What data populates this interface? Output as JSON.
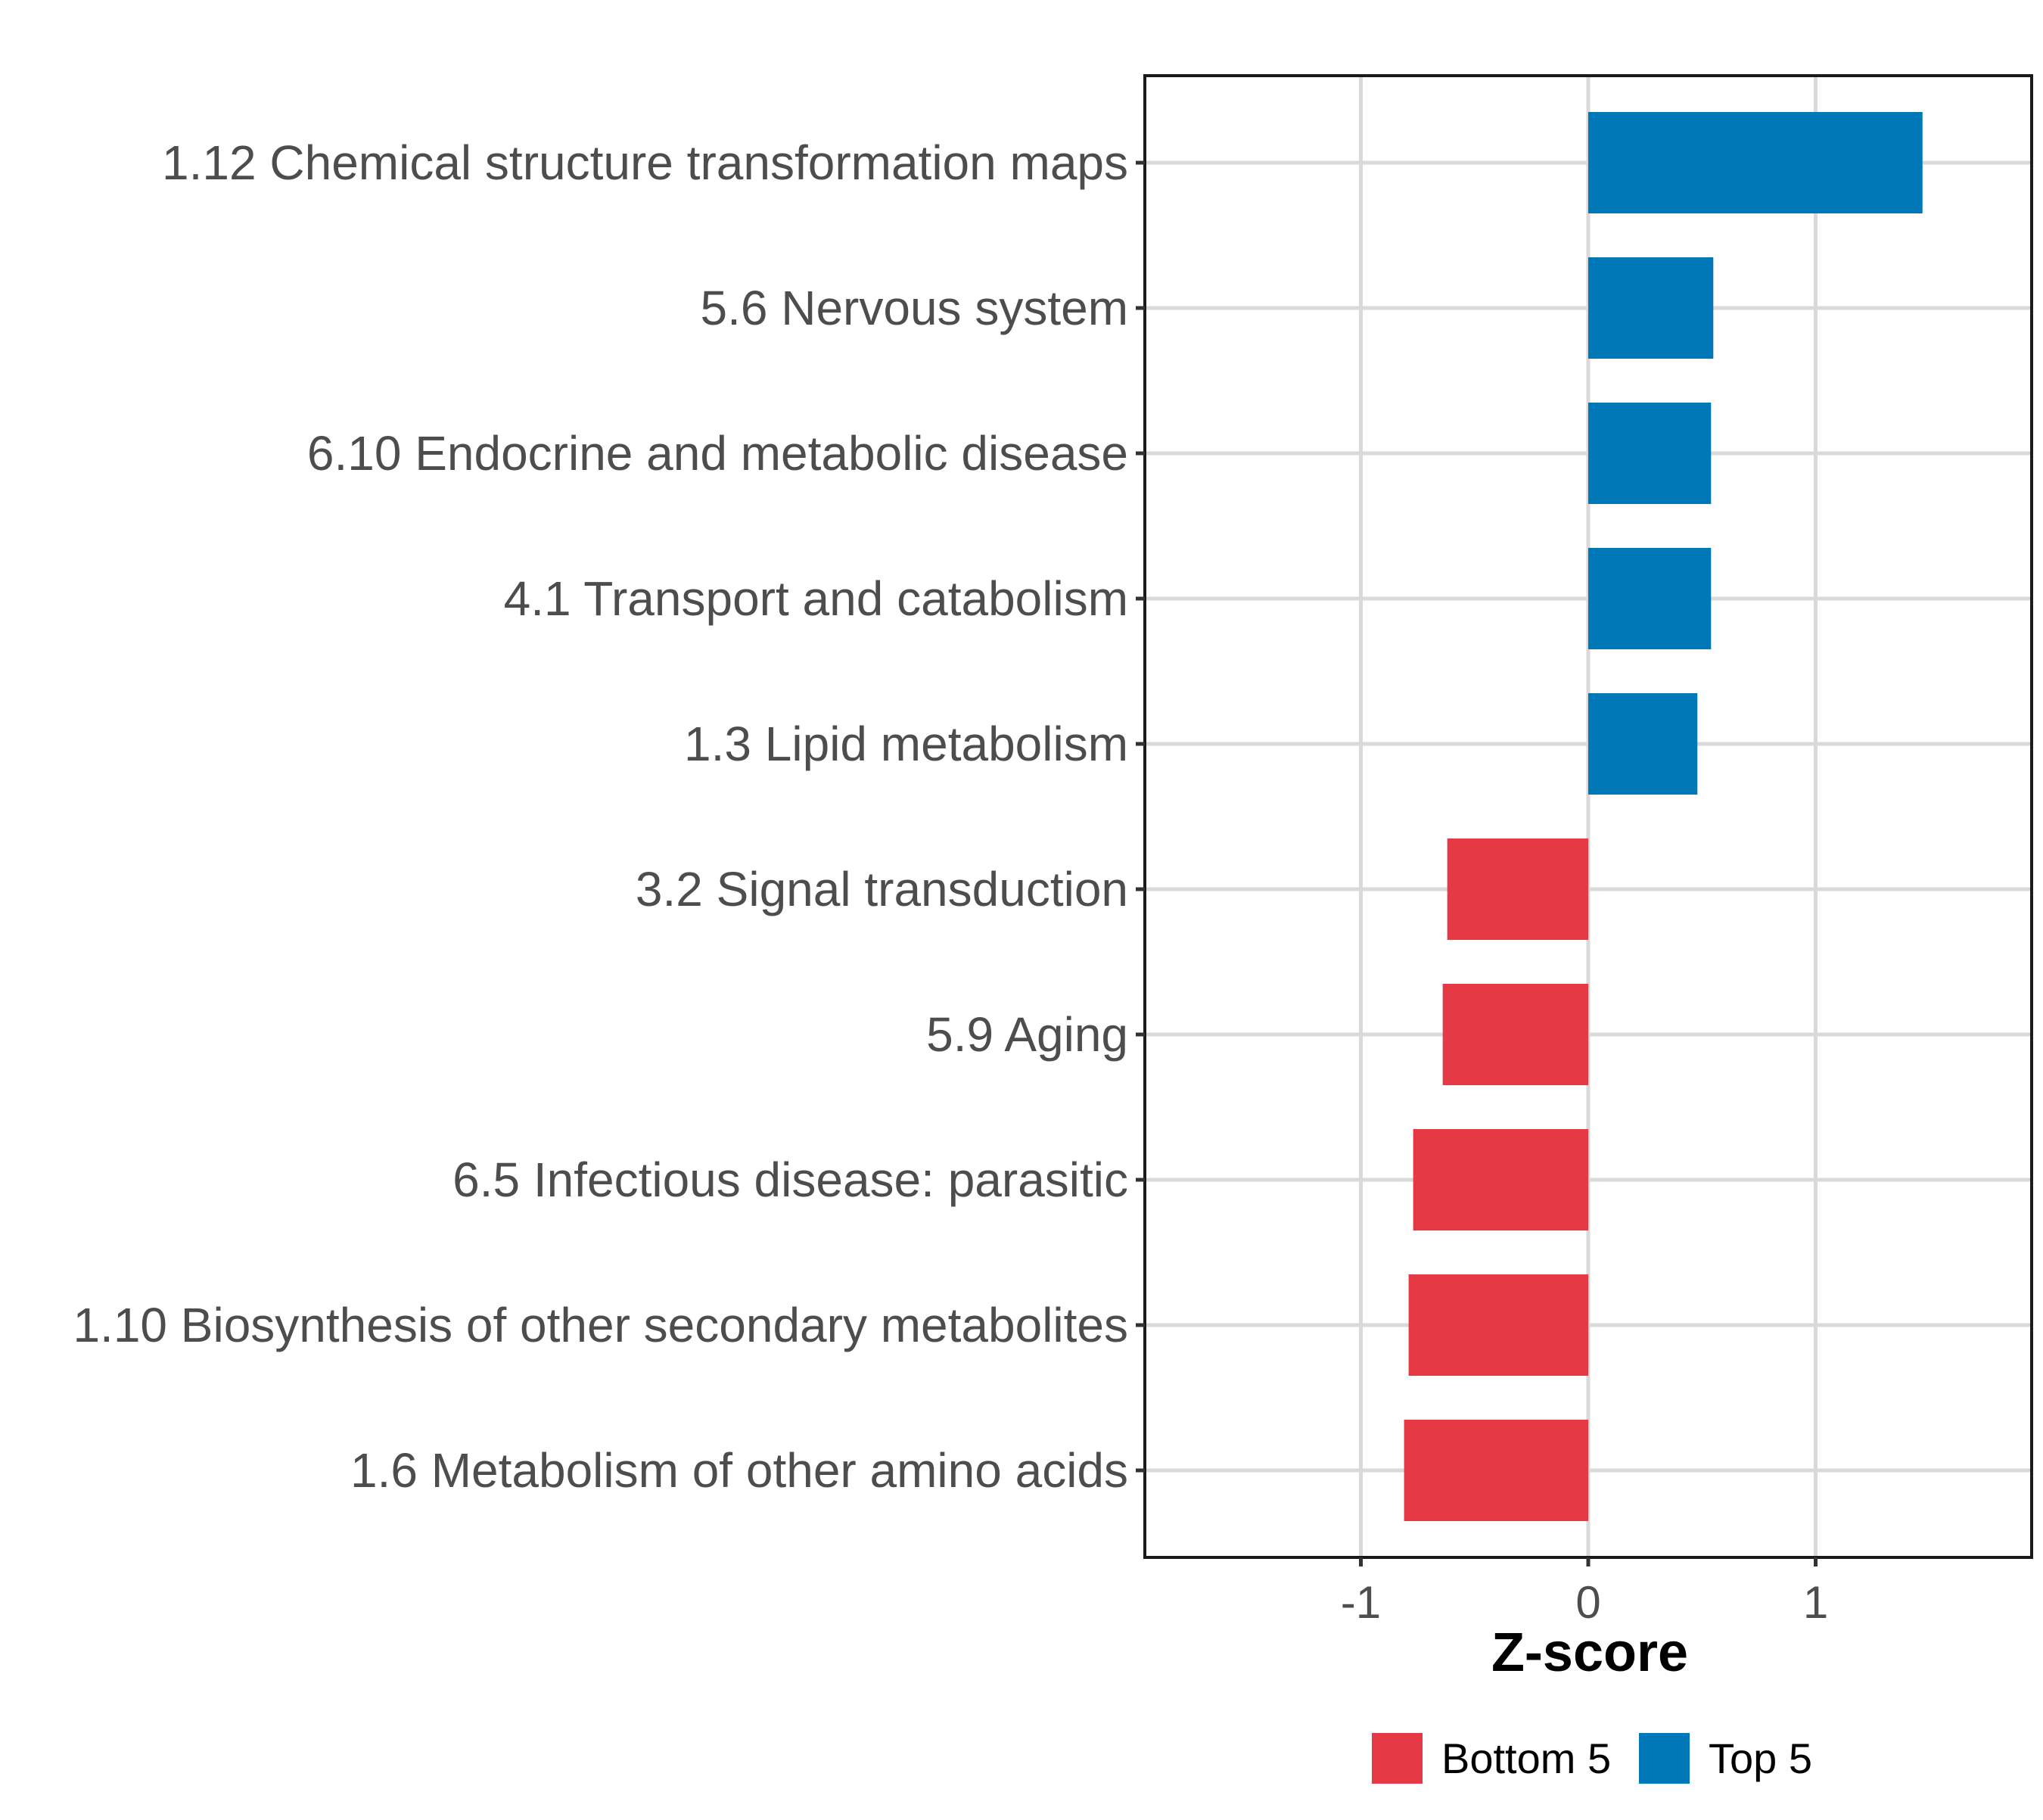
{
  "chart_data": {
    "type": "bar",
    "orientation": "horizontal",
    "title": "",
    "xlabel": "Z-score",
    "ylabel": "",
    "xlim": [
      -1.95,
      1.95
    ],
    "xticks": [
      -1,
      0,
      1
    ],
    "xtick_labels": [
      "-1",
      "0",
      "1"
    ],
    "grid": true,
    "legend_placement": "bottom",
    "categories": [
      "1.12 Chemical structure transformation maps",
      "5.6 Nervous system",
      "6.10 Endocrine and metabolic disease",
      "4.1 Transport and catabolism",
      "1.3 Lipid metabolism",
      "3.2 Signal transduction",
      "5.9 Aging",
      "6.5 Infectious disease: parasitic",
      "1.10 Biosynthesis of other secondary metabolites",
      "1.6 Metabolism of other amino acids"
    ],
    "values": [
      1.47,
      0.55,
      0.54,
      0.54,
      0.48,
      -0.62,
      -0.64,
      -0.77,
      -0.79,
      -0.81
    ],
    "groups": [
      "Top 5",
      "Top 5",
      "Top 5",
      "Top 5",
      "Top 5",
      "Bottom 5",
      "Bottom 5",
      "Bottom 5",
      "Bottom 5",
      "Bottom 5"
    ],
    "legend": [
      {
        "name": "Bottom 5",
        "color": "#E63946"
      },
      {
        "name": "Top 5",
        "color": "#0077B6"
      }
    ]
  }
}
